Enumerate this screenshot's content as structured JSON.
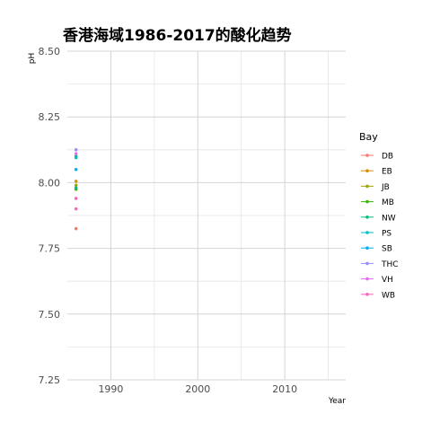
{
  "chart_data": {
    "type": "scatter",
    "title": "香港海域1986-2017的酸化趋势",
    "xlabel": "Year",
    "ylabel": "pH",
    "xlim": [
      1985,
      2017
    ],
    "ylim": [
      7.25,
      8.5
    ],
    "x_ticks": [
      1990,
      2000,
      2010
    ],
    "y_ticks": [
      7.25,
      7.5,
      7.75,
      8.0,
      8.25,
      8.5
    ],
    "y_tick_labels": [
      "7.25",
      "7.50",
      "7.75",
      "8.00",
      "8.25",
      "8.50"
    ],
    "grid": true,
    "legend": {
      "title": "Bay",
      "position": "right"
    },
    "series": [
      {
        "name": "DB",
        "color": "#F8766D",
        "points": [
          [
            1986,
            7.825
          ]
        ]
      },
      {
        "name": "EB",
        "color": "#D89000",
        "points": [
          [
            1986,
            8.005
          ]
        ]
      },
      {
        "name": "JB",
        "color": "#A3A500",
        "points": [
          [
            1986,
            7.99
          ]
        ]
      },
      {
        "name": "MB",
        "color": "#39B600",
        "points": [
          [
            1986,
            7.975
          ]
        ]
      },
      {
        "name": "NW",
        "color": "#00BF7D",
        "points": [
          [
            1986,
            8.1
          ],
          [
            1986,
            7.98
          ]
        ]
      },
      {
        "name": "PS",
        "color": "#00BFC4",
        "points": [
          [
            1986,
            8.095
          ]
        ]
      },
      {
        "name": "SB",
        "color": "#00B0F6",
        "points": [
          [
            1986,
            8.05
          ]
        ]
      },
      {
        "name": "THC",
        "color": "#9590FF",
        "points": [
          [
            1986,
            8.125
          ]
        ]
      },
      {
        "name": "VH",
        "color": "#E76BF3",
        "points": [
          [
            1986,
            8.11
          ]
        ]
      },
      {
        "name": "WB",
        "color": "#FF62BC",
        "points": [
          [
            1986,
            7.94
          ],
          [
            1986,
            7.9
          ]
        ]
      }
    ]
  }
}
